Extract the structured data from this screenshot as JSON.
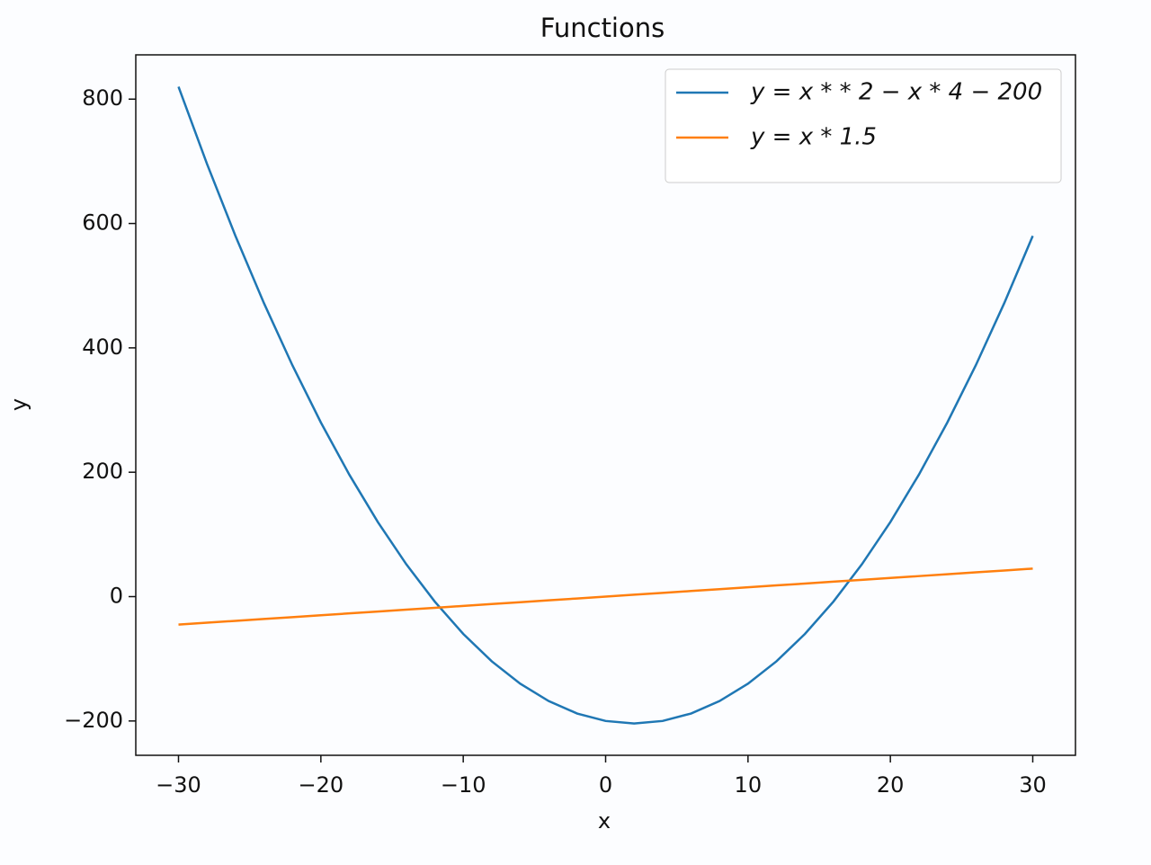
{
  "chart_data": {
    "type": "line",
    "title": "Functions",
    "x_label": "x",
    "y_label": "y",
    "x": [
      -30,
      -28,
      -26,
      -24,
      -22,
      -20,
      -18,
      -16,
      -14,
      -12,
      -10,
      -8,
      -6,
      -4,
      -2,
      0,
      2,
      4,
      6,
      8,
      10,
      12,
      14,
      16,
      18,
      20,
      22,
      24,
      26,
      28,
      30
    ],
    "series": [
      {
        "name": "y = x * * 2 − x * 4 − 200",
        "color": "#1f77b4",
        "values": [
          820,
          696,
          580,
          472,
          372,
          280,
          196,
          120,
          52,
          -8,
          -60,
          -104,
          -140,
          -168,
          -188,
          -200,
          -204,
          -200,
          -188,
          -168,
          -140,
          -104,
          -60,
          -8,
          52,
          120,
          196,
          280,
          372,
          472,
          580
        ]
      },
      {
        "name": "y = x * 1.5",
        "color": "#ff7f0e",
        "values": [
          -45,
          -42,
          -39,
          -36,
          -33,
          -30,
          -27,
          -24,
          -21,
          -18,
          -15,
          -12,
          -9,
          -6,
          -3,
          0,
          3,
          6,
          9,
          12,
          15,
          18,
          21,
          24,
          27,
          30,
          33,
          36,
          39,
          42,
          45
        ]
      }
    ],
    "xlim": [
      -33,
      33
    ],
    "xticks": [
      {
        "value": -30,
        "label": "−30"
      },
      {
        "value": -20,
        "label": "−20"
      },
      {
        "value": -10,
        "label": "−10"
      },
      0,
      10,
      20,
      30
    ],
    "ylim": [
      -255.2,
      871.2
    ],
    "yticks": [
      {
        "value": -200,
        "label": "−200"
      },
      0,
      200,
      400,
      600,
      800
    ],
    "legend": "upper right",
    "grid": false
  }
}
